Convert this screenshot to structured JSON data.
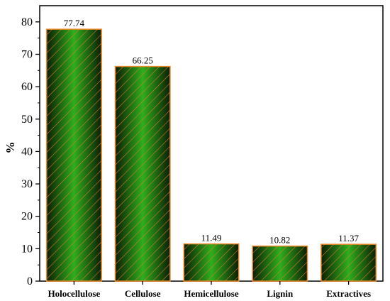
{
  "chart_data": {
    "type": "bar",
    "categories": [
      "Holocellulose",
      "Cellulose",
      "Hemicellulose",
      "Lignin",
      "Extractives"
    ],
    "values": [
      77.74,
      66.25,
      11.49,
      10.82,
      11.37
    ],
    "data_labels": [
      "77.74",
      "66.25",
      "11.49",
      "10.82",
      "11.37"
    ],
    "xlabel": "",
    "ylabel": "%",
    "ylim": [
      0,
      85
    ],
    "yticks": [
      0,
      10,
      20,
      30,
      40,
      50,
      60,
      70,
      80
    ],
    "grid": false,
    "colors": {
      "bar_fill_center": "#2fae1e",
      "bar_fill_edge": "#0b1f05",
      "bar_hatch": "#e07b22",
      "bar_outline": "#f08a2a",
      "axis": "#000000"
    }
  }
}
